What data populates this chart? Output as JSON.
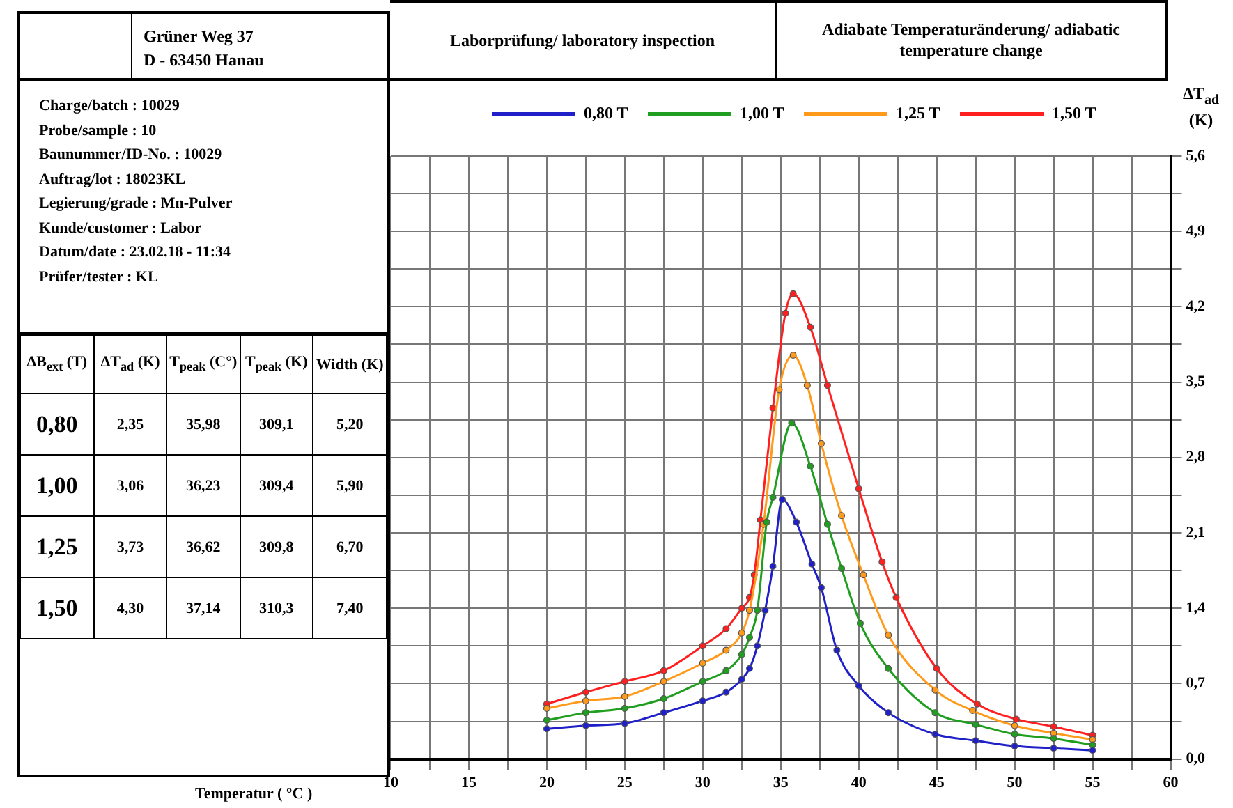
{
  "chart_data": [
    {
      "type": "other",
      "annotations": [
        "Grüner Weg 37",
        "D - 63450 Hanau"
      ]
    },
    {
      "type": "other",
      "annotations": [
        "Charge/batch : 10029",
        "Probe/sample : 10",
        "Baunummer/ID-No. : 10029",
        "Auftrag/lot : 18023KL",
        "Legierung/grade : Mn-Pulver",
        "Kunde/customer : Labor",
        "Datum/date : 23.02.18 - 11:34",
        "Prüfer/tester : KL"
      ]
    },
    {
      "type": "other",
      "annotations": [
        "ΔB$_{ext}$ (T)",
        "ΔT$_{ad}$ (K)",
        "T$_{peak}$ (C°)",
        "T$_{peak}$ (K)",
        "Width (K)",
        "0,80",
        "2,35",
        "35,98",
        "309,1",
        "5,20",
        "1,00",
        "3,06",
        "36,23",
        "309,4",
        "5,90",
        "1,25",
        "3,73",
        "36,62",
        "309,8",
        "6,70",
        "1,50",
        "4,30",
        "37,14",
        "310,3",
        "7,40"
      ]
    },
    {
      "type": "line",
      "title": "Laborprüfung/ laboratory inspection",
      "subtitle": "Adiabate Temperaturänderung/ adiabatic temperature change",
      "xlabel": "Temperatur ( °C )",
      "ylabel": "ΔT$_{ad}$ (K)",
      "series": [
        {
          "name": "0,80 T",
          "color": "#2020c8",
          "x": [
            20,
            22.5,
            25,
            27.5,
            30,
            31.5,
            32.5,
            33,
            33.5,
            34,
            34.5,
            35.1,
            36,
            37,
            37.6,
            38.6,
            40,
            41.9,
            44.9,
            47.5,
            50,
            52.5,
            55
          ],
          "values": [
            0.28,
            0.31,
            0.33,
            0.43,
            0.54,
            0.62,
            0.74,
            0.84,
            1.05,
            1.38,
            1.79,
            2.41,
            2.2,
            1.81,
            1.59,
            1.01,
            0.68,
            0.43,
            0.23,
            0.17,
            0.12,
            0.1,
            0.08
          ]
        },
        {
          "name": "1,00 T",
          "color": "#1f9e1f",
          "x": [
            20,
            22.5,
            25,
            27.5,
            30,
            31.5,
            32.5,
            33,
            33.5,
            34.1,
            34.5,
            35.7,
            36.9,
            38,
            38.9,
            40.1,
            41.9,
            44.9,
            47.5,
            50,
            52.5,
            55
          ],
          "values": [
            0.36,
            0.43,
            0.47,
            0.56,
            0.72,
            0.82,
            0.97,
            1.13,
            1.38,
            2.2,
            2.43,
            3.12,
            2.72,
            2.18,
            1.77,
            1.26,
            0.84,
            0.43,
            0.32,
            0.23,
            0.19,
            0.13
          ]
        },
        {
          "name": "1,25 T",
          "color": "#ff9a1a",
          "x": [
            20,
            22.5,
            25,
            27.5,
            30,
            31.5,
            32.5,
            33,
            33.9,
            34.9,
            35.8,
            36.7,
            37.6,
            38.9,
            40.3,
            41.9,
            44.9,
            47.3,
            50,
            52.5,
            55
          ],
          "values": [
            0.47,
            0.54,
            0.58,
            0.72,
            0.89,
            1.01,
            1.17,
            1.38,
            2.18,
            3.43,
            3.75,
            3.47,
            2.93,
            2.26,
            1.71,
            1.15,
            0.64,
            0.45,
            0.31,
            0.24,
            0.18
          ]
        },
        {
          "name": "1,50 T",
          "color": "#ff1f1f",
          "x": [
            20,
            22.5,
            25,
            27.5,
            30,
            31.5,
            32.5,
            33,
            33.3,
            33.7,
            34.5,
            35.3,
            35.8,
            36.9,
            38,
            40,
            41.5,
            42.4,
            45,
            47.6,
            50.1,
            52.5,
            55
          ],
          "values": [
            0.51,
            0.62,
            0.72,
            0.82,
            1.05,
            1.21,
            1.4,
            1.5,
            1.71,
            2.22,
            3.26,
            4.14,
            4.32,
            4.01,
            3.47,
            2.51,
            1.83,
            1.5,
            0.84,
            0.51,
            0.37,
            0.3,
            0.22
          ]
        }
      ],
      "xlim": [
        10,
        60
      ],
      "xticks": [
        10,
        {
          "value": 12.5,
          "label": null
        },
        15,
        {
          "value": 17.5,
          "label": null
        },
        20,
        {
          "value": 22.5,
          "label": null
        },
        25,
        {
          "value": 27.5,
          "label": null
        },
        30,
        {
          "value": 32.5,
          "label": null
        },
        35,
        {
          "value": 37.5,
          "label": null
        },
        40,
        {
          "value": 42.5,
          "label": null
        },
        45,
        {
          "value": 47.5,
          "label": null
        },
        50,
        {
          "value": 52.5,
          "label": null
        },
        55,
        {
          "value": 57.5,
          "label": null
        },
        60
      ],
      "ylim": [
        0,
        5.6
      ],
      "yticks": [
        {
          "value": 0,
          "label": "0,0"
        },
        {
          "value": 0.35,
          "label": null
        },
        {
          "value": 0.7,
          "label": "0,7"
        },
        {
          "value": 1.05,
          "label": null
        },
        {
          "value": 1.4,
          "label": "1,4"
        },
        {
          "value": 1.75,
          "label": null
        },
        {
          "value": 2.1,
          "label": "2,1"
        },
        {
          "value": 2.45,
          "label": null
        },
        {
          "value": 2.8,
          "label": "2,8"
        },
        {
          "value": 3.15,
          "label": null
        },
        {
          "value": 3.5,
          "label": "3,5"
        },
        {
          "value": 3.85,
          "label": null
        },
        {
          "value": 4.2,
          "label": "4,2"
        },
        {
          "value": 4.55,
          "label": null
        },
        {
          "value": 4.9,
          "label": "4,9"
        },
        {
          "value": 5.25,
          "label": null
        },
        {
          "value": 5.6,
          "label": "5,6"
        }
      ],
      "grid": true,
      "legend": "top",
      "marker": "circle",
      "line_style": "solid"
    }
  ]
}
